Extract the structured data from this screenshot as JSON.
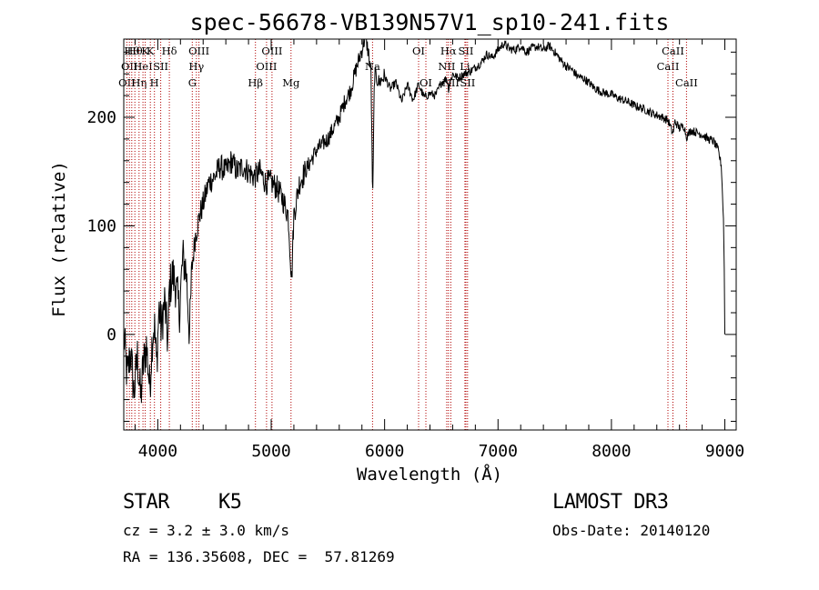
{
  "chart_data": {
    "type": "line",
    "title": "spec-56678-VB139N57V1_sp10-241.fits",
    "xlabel": "Wavelength (Å)",
    "ylabel": "Flux (relative)",
    "xlim": [
      3700,
      9100
    ],
    "ylim": [
      -88,
      272
    ],
    "xticks": [
      4000,
      5000,
      6000,
      7000,
      8000,
      9000
    ],
    "yticks": [
      0,
      100,
      200
    ],
    "grid": false,
    "line_color": "#000000",
    "marker_color": "#b00000",
    "series": [
      {
        "points": [
          [
            3700,
            0
          ],
          [
            3730,
            -40
          ],
          [
            3760,
            -15
          ],
          [
            3790,
            -55
          ],
          [
            3820,
            -20
          ],
          [
            3850,
            -60
          ],
          [
            3870,
            -30
          ],
          [
            3900,
            -10
          ],
          [
            3930,
            -50
          ],
          [
            3950,
            -5
          ],
          [
            3970,
            10
          ],
          [
            3990,
            -30
          ],
          [
            4010,
            25
          ],
          [
            4030,
            5
          ],
          [
            4060,
            30
          ],
          [
            4090,
            -10
          ],
          [
            4100,
            40
          ],
          [
            4130,
            55
          ],
          [
            4160,
            45
          ],
          [
            4190,
            20
          ],
          [
            4220,
            70
          ],
          [
            4250,
            60
          ],
          [
            4280,
            0
          ],
          [
            4300,
            60
          ],
          [
            4330,
            90
          ],
          [
            4370,
            110
          ],
          [
            4400,
            120
          ],
          [
            4450,
            140
          ],
          [
            4500,
            145
          ],
          [
            4550,
            155
          ],
          [
            4600,
            150
          ],
          [
            4650,
            160
          ],
          [
            4700,
            150
          ],
          [
            4750,
            155
          ],
          [
            4800,
            150
          ],
          [
            4850,
            145
          ],
          [
            4900,
            150
          ],
          [
            4950,
            140
          ],
          [
            5000,
            140
          ],
          [
            5050,
            135
          ],
          [
            5100,
            125
          ],
          [
            5150,
            110
          ],
          [
            5180,
            50
          ],
          [
            5200,
            110
          ],
          [
            5250,
            140
          ],
          [
            5300,
            150
          ],
          [
            5350,
            160
          ],
          [
            5400,
            170
          ],
          [
            5450,
            175
          ],
          [
            5500,
            180
          ],
          [
            5550,
            190
          ],
          [
            5600,
            200
          ],
          [
            5650,
            215
          ],
          [
            5700,
            225
          ],
          [
            5750,
            245
          ],
          [
            5800,
            262
          ],
          [
            5830,
            275
          ],
          [
            5860,
            258
          ],
          [
            5880,
            240
          ],
          [
            5895,
            120
          ],
          [
            5910,
            240
          ],
          [
            5950,
            232
          ],
          [
            6000,
            238
          ],
          [
            6050,
            226
          ],
          [
            6100,
            232
          ],
          [
            6150,
            214
          ],
          [
            6200,
            230
          ],
          [
            6250,
            216
          ],
          [
            6300,
            230
          ],
          [
            6350,
            218
          ],
          [
            6400,
            222
          ],
          [
            6450,
            220
          ],
          [
            6500,
            232
          ],
          [
            6550,
            236
          ],
          [
            6563,
            226
          ],
          [
            6600,
            240
          ],
          [
            6650,
            236
          ],
          [
            6700,
            240
          ],
          [
            6750,
            242
          ],
          [
            6800,
            246
          ],
          [
            6850,
            250
          ],
          [
            6900,
            258
          ],
          [
            6950,
            255
          ],
          [
            7000,
            262
          ],
          [
            7050,
            268
          ],
          [
            7100,
            263
          ],
          [
            7150,
            262
          ],
          [
            7200,
            266
          ],
          [
            7250,
            260
          ],
          [
            7300,
            264
          ],
          [
            7350,
            265
          ],
          [
            7400,
            262
          ],
          [
            7450,
            266
          ],
          [
            7500,
            260
          ],
          [
            7550,
            253
          ],
          [
            7600,
            247
          ],
          [
            7650,
            244
          ],
          [
            7700,
            238
          ],
          [
            7750,
            236
          ],
          [
            7800,
            232
          ],
          [
            7850,
            227
          ],
          [
            7900,
            224
          ],
          [
            7950,
            222
          ],
          [
            8000,
            221
          ],
          [
            8050,
            218
          ],
          [
            8100,
            216
          ],
          [
            8150,
            214
          ],
          [
            8200,
            211
          ],
          [
            8250,
            209
          ],
          [
            8300,
            207
          ],
          [
            8350,
            204
          ],
          [
            8400,
            202
          ],
          [
            8450,
            200
          ],
          [
            8500,
            197
          ],
          [
            8542,
            185
          ],
          [
            8560,
            196
          ],
          [
            8600,
            190
          ],
          [
            8640,
            192
          ],
          [
            8662,
            182
          ],
          [
            8700,
            188
          ],
          [
            8750,
            186
          ],
          [
            8800,
            184
          ],
          [
            8850,
            180
          ],
          [
            8900,
            178
          ],
          [
            8940,
            170
          ],
          [
            8970,
            155
          ],
          [
            8990,
            100
          ],
          [
            9000,
            0
          ]
        ]
      }
    ],
    "line_markers": [
      {
        "wave": 3727,
        "label": "OII",
        "row": 2
      },
      {
        "wave": 3750,
        "label": "OII",
        "row": 1
      },
      {
        "wave": 3771,
        "label": "Hθ",
        "row": 0
      },
      {
        "wave": 3798,
        "label": "Hθ",
        "row": 0
      },
      {
        "wave": 3835,
        "label": "Hη",
        "row": 2
      },
      {
        "wave": 3869,
        "label": "HeI",
        "row": 1
      },
      {
        "wave": 3889,
        "label": "K",
        "row": 0
      },
      {
        "wave": 3934,
        "label": "K",
        "row": 0
      },
      {
        "wave": 3970,
        "label": "H",
        "row": 2
      },
      {
        "wave": 4026,
        "label": "SII",
        "row": 1
      },
      {
        "wave": 4102,
        "label": "Hδ",
        "row": 0
      },
      {
        "wave": 4304,
        "label": "G",
        "row": 2
      },
      {
        "wave": 4340,
        "label": "Hγ",
        "row": 1
      },
      {
        "wave": 4363,
        "label": "OIII",
        "row": 0
      },
      {
        "wave": 4861,
        "label": "Hβ",
        "row": 2
      },
      {
        "wave": 4959,
        "label": "OIII",
        "row": 1
      },
      {
        "wave": 5007,
        "label": "OIII",
        "row": 0
      },
      {
        "wave": 5175,
        "label": "Mg",
        "row": 2
      },
      {
        "wave": 5894,
        "label": "Na",
        "row": 1
      },
      {
        "wave": 6300,
        "label": "OI",
        "row": 0
      },
      {
        "wave": 6364,
        "label": "OI",
        "row": 2
      },
      {
        "wave": 6548,
        "label": "NII",
        "row": 1
      },
      {
        "wave": 6563,
        "label": "Hα",
        "row": 0
      },
      {
        "wave": 6584,
        "label": "NII",
        "row": 2
      },
      {
        "wave": 6708,
        "label": "Li",
        "row": 1
      },
      {
        "wave": 6717,
        "label": "SII",
        "row": 0
      },
      {
        "wave": 6731,
        "label": "SII",
        "row": 2
      },
      {
        "wave": 8498,
        "label": "CaII",
        "row": 1
      },
      {
        "wave": 8542,
        "label": "CaII",
        "row": 0
      },
      {
        "wave": 8662,
        "label": "CaII",
        "row": 2
      }
    ]
  },
  "info": {
    "object_class": "STAR",
    "subclass": "K5",
    "survey": "LAMOST DR3",
    "cz": "cz = 3.2 ± 3.0 km/s",
    "obs_date": "Obs-Date: 20140120",
    "coords": "RA = 136.35608, DEC =  57.81269"
  }
}
